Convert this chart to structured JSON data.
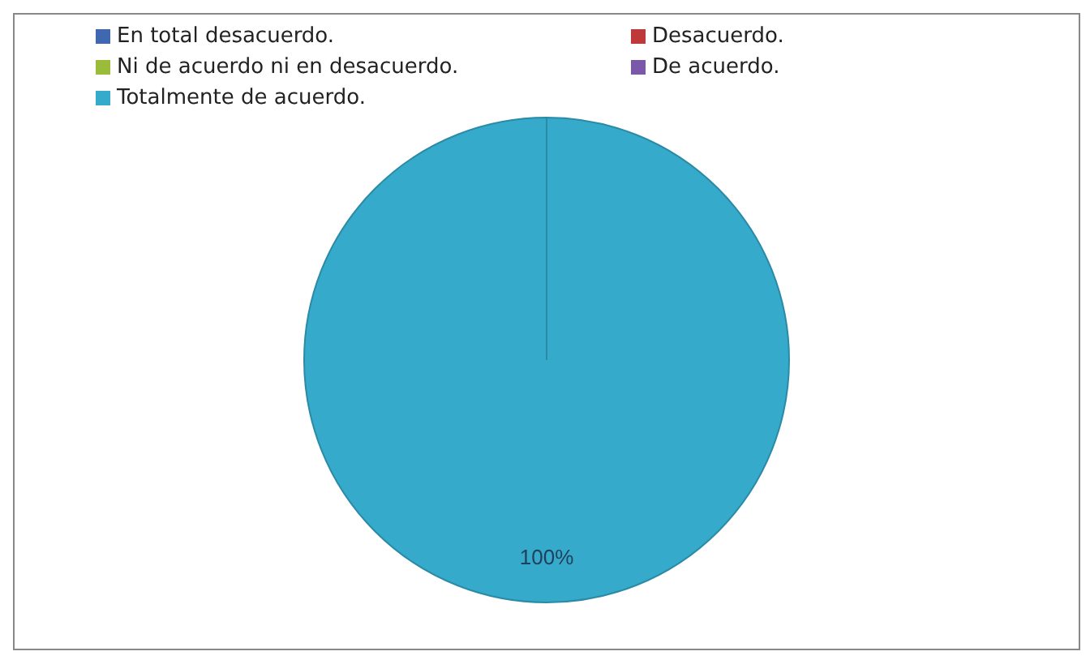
{
  "chart_data": {
    "type": "pie",
    "categories": [
      "En total  desacuerdo.",
      "Desacuerdo.",
      "Ni de acuerdo ni en desacuerdo.",
      "De acuerdo.",
      "Totalmente de acuerdo."
    ],
    "values": [
      0,
      0,
      0,
      0,
      100
    ],
    "colors": [
      "#3f68b0",
      "#c0393a",
      "#9bbb3b",
      "#7a5aa8",
      "#36aacb"
    ],
    "value_labels": [
      null,
      null,
      null,
      null,
      "100%"
    ],
    "legend": "top"
  }
}
